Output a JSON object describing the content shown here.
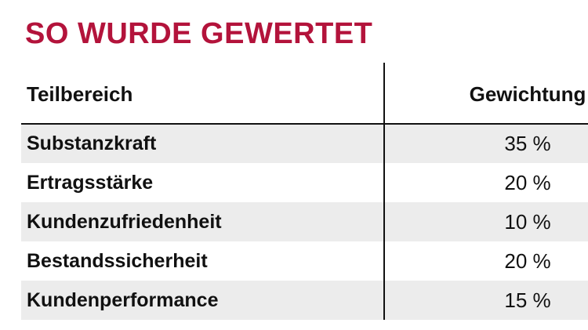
{
  "header": {
    "title": "SO WURDE GEWERTET"
  },
  "table": {
    "columns": [
      "Teilbereich",
      "Gewichtung"
    ],
    "rows": [
      [
        "Substanzkraft",
        "35 %"
      ],
      [
        "Ertragsstärke",
        "20 %"
      ],
      [
        "Kundenzufriedenheit",
        "10 %"
      ],
      [
        "Bestandssicherheit",
        "20 %"
      ],
      [
        "Kundenperformance",
        "15 %"
      ]
    ]
  }
}
